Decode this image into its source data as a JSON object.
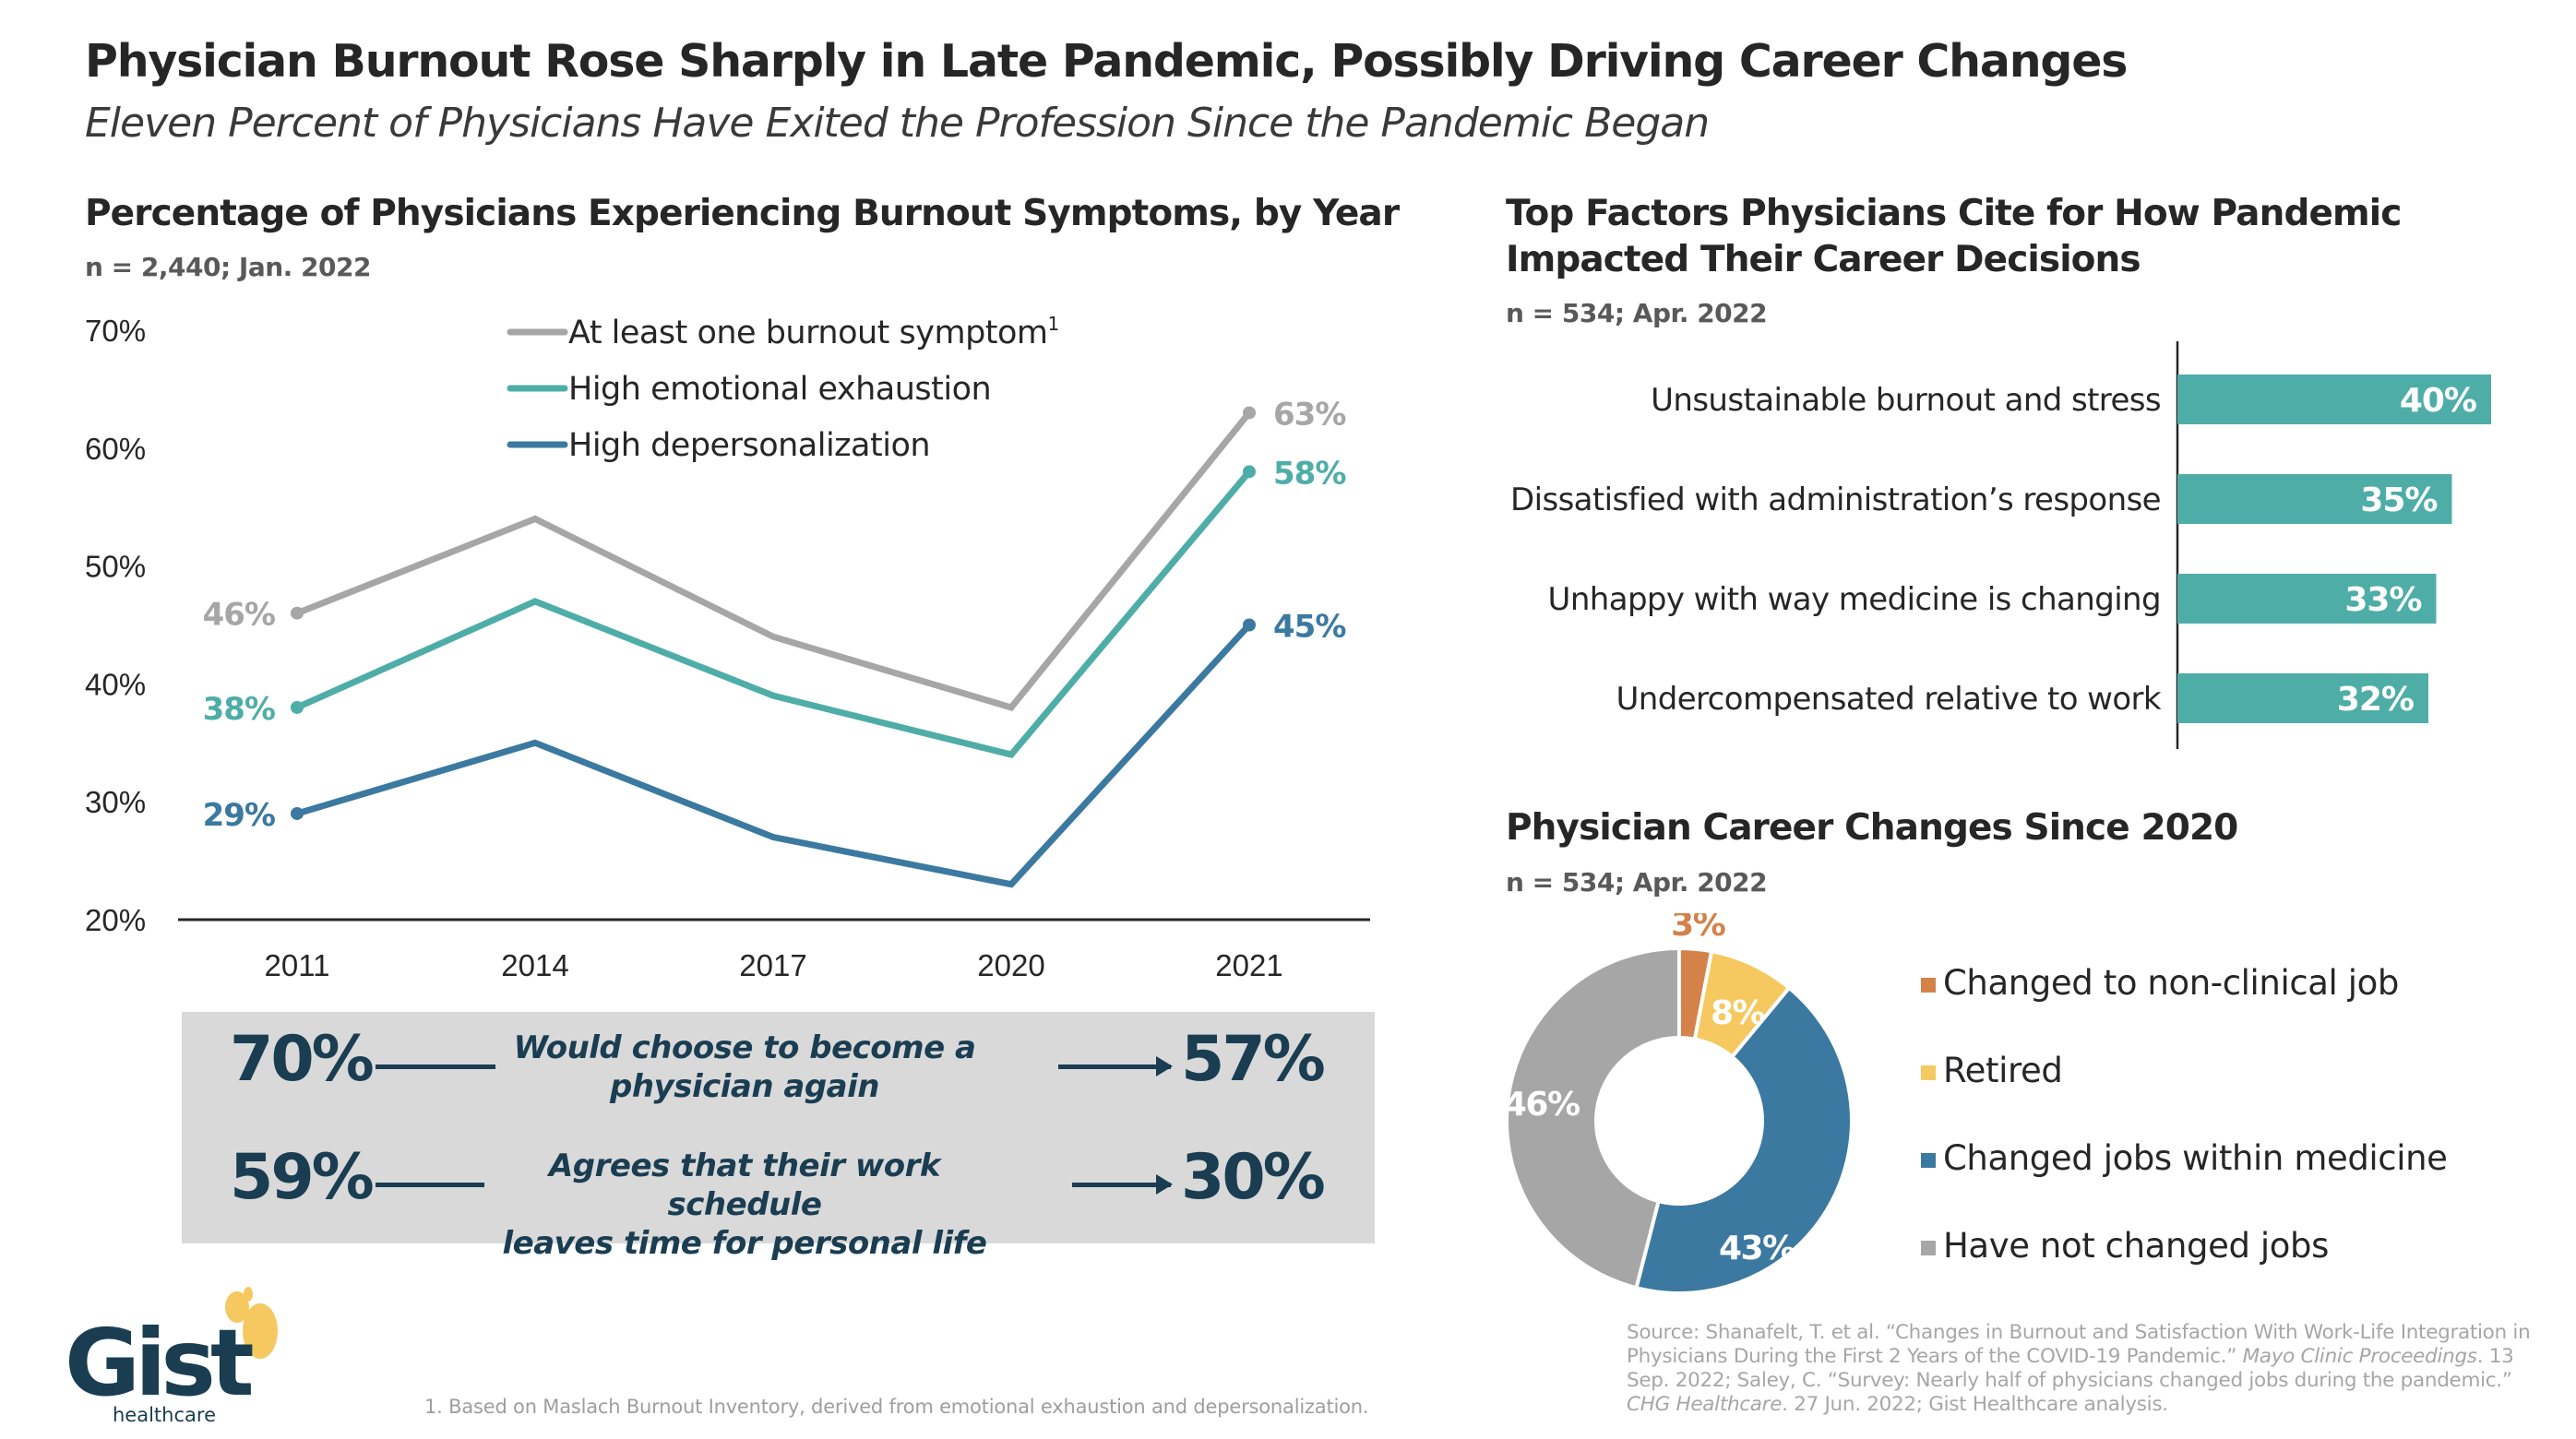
{
  "header": {
    "title": "Physician Burnout Rose Sharply in Late Pandemic, Possibly Driving Career Changes",
    "subtitle": "Eleven Percent of Physicians Have Exited the Profession Since the Pandemic Began"
  },
  "colors": {
    "gray": "#a6a6a6",
    "teal": "#4fada8",
    "blue": "#3b79a0",
    "orange": "#d4824a",
    "yellow": "#f5c95f",
    "navy": "#1a3d52",
    "box_bg": "#d9d9d9"
  },
  "line_section": {
    "title": "Percentage of Physicians Experiencing Burnout Symptoms, by Year",
    "n": "n = 2,440;  Jan. 2022"
  },
  "bar_section": {
    "title_line1": "Top Factors Physicians Cite for How Pandemic",
    "title_line2": "Impacted Their Career Decisions",
    "n": "n = 534;  Apr. 2022"
  },
  "donut_section": {
    "title": "Physician Career Changes Since 2020",
    "n": "n = 534;  Apr. 2022"
  },
  "stats": [
    {
      "before": "70%",
      "label_line1": "Would choose to become a",
      "label_line2": "physician again",
      "after": "57%"
    },
    {
      "before": "59%",
      "label_line1": "Agrees that their work schedule",
      "label_line2": "leaves time for personal life",
      "after": "30%"
    }
  ],
  "chart_data": [
    {
      "type": "line",
      "title": "Percentage of Physicians Experiencing Burnout Symptoms, by Year",
      "x": [
        "2011",
        "2014",
        "2017",
        "2020",
        "2021"
      ],
      "ylim": [
        20,
        70
      ],
      "yticks": [
        "20%",
        "30%",
        "40%",
        "50%",
        "60%",
        "70%"
      ],
      "legend_position": "top-center",
      "series": [
        {
          "name": "At least one burnout symptom",
          "footnote_marker": "1",
          "color": "#a6a6a6",
          "values": [
            46,
            54,
            44,
            38,
            63
          ],
          "labels": [
            "46%",
            null,
            null,
            null,
            "63%"
          ]
        },
        {
          "name": "High emotional exhaustion",
          "color": "#4fada8",
          "values": [
            38,
            47,
            39,
            34,
            58
          ],
          "labels": [
            "38%",
            null,
            null,
            null,
            "58%"
          ]
        },
        {
          "name": "High depersonalization",
          "color": "#3b79a0",
          "values": [
            29,
            35,
            27,
            23,
            45
          ],
          "labels": [
            "29%",
            null,
            null,
            null,
            "45%"
          ]
        }
      ]
    },
    {
      "type": "bar",
      "orientation": "horizontal",
      "title": "Top Factors Physicians Cite for How Pandemic Impacted Their Career Decisions",
      "categories": [
        "Unsustainable burnout and stress",
        "Dissatisfied with administration’s response",
        "Unhappy with way medicine is changing",
        "Undercompensated relative to work"
      ],
      "values": [
        40,
        35,
        33,
        32
      ],
      "labels": [
        "40%",
        "35%",
        "33%",
        "32%"
      ],
      "color": "#4fada8",
      "xlim": [
        0,
        40
      ]
    },
    {
      "type": "pie",
      "variant": "donut",
      "title": "Physician Career Changes Since 2020",
      "categories": [
        "Changed to non-clinical job",
        "Retired",
        "Changed jobs within medicine",
        "Have not changed jobs"
      ],
      "values": [
        3,
        8,
        43,
        46
      ],
      "labels": [
        "3%",
        "8%",
        "43%",
        "46%"
      ],
      "colors": [
        "#d4824a",
        "#f5c95f",
        "#3b79a0",
        "#a6a6a6"
      ],
      "legend_position": "right"
    }
  ],
  "footnote": "1. Based on Maslach Burnout Inventory, derived from emotional exhaustion and depersonalization.",
  "source": {
    "part1": "Source: Shanafelt, T. et al. “Changes in Burnout and Satisfaction With Work-Life Integration in Physicians During the First 2 Years of the COVID-19 Pandemic.” ",
    "journal1": "Mayo Clinic Proceedings",
    "part2": ". 13 Sep. 2022; Saley, C. “Survey: Nearly half of physicians changed jobs during the pandemic.” ",
    "journal2": "CHG Healthcare",
    "part3": ". 27 Jun. 2022; Gist Healthcare analysis."
  },
  "logo": {
    "wordmark": "Gist",
    "tagline": "healthcare"
  }
}
